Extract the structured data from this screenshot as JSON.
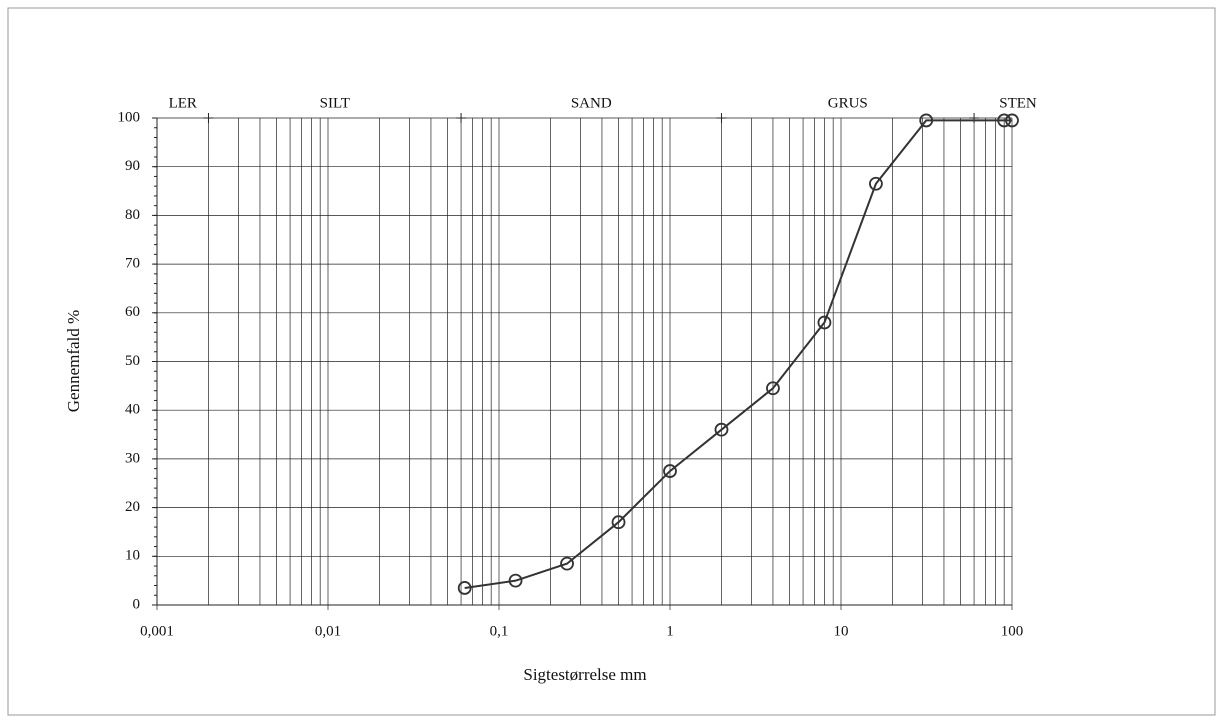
{
  "chart_data": {
    "type": "line",
    "x_label": "Sigtestørrelse mm",
    "y_label": "Gennemfald %",
    "x": [
      0.063,
      0.125,
      0.25,
      0.5,
      1,
      2,
      4,
      8,
      16,
      31.5,
      90,
      100
    ],
    "values": [
      3.5,
      5,
      8.5,
      17,
      27.5,
      36,
      44.5,
      58,
      86.5,
      99.5,
      99.5,
      99.5
    ],
    "color": "#333333",
    "xscale": "log",
    "xlim": [
      0.001,
      100
    ],
    "xticks": [
      {
        "value": 0.001,
        "label": "0,001"
      },
      {
        "value": 0.01,
        "label": "0,01"
      },
      {
        "value": 0.1,
        "label": "0,1"
      },
      1,
      10,
      100
    ],
    "ylim": [
      0,
      100
    ],
    "yticks": [
      0,
      10,
      20,
      30,
      40,
      50,
      60,
      70,
      80,
      90,
      100
    ],
    "grid": true,
    "minor_grid": true,
    "fraction_labels": [
      "LER",
      "SILT",
      "SAND",
      "GRUS",
      "STEN"
    ],
    "fraction_boundaries": [
      0.002,
      0.06,
      2,
      60
    ]
  }
}
